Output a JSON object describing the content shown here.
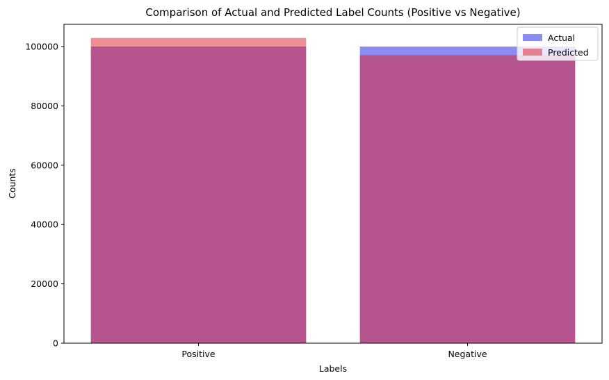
{
  "chart_data": {
    "type": "bar",
    "title": "Comparison of Actual and Predicted Label Counts (Positive vs Negative)",
    "xlabel": "Labels",
    "ylabel": "Counts",
    "categories": [
      "Positive",
      "Negative"
    ],
    "series": [
      {
        "name": "Actual",
        "values": [
          100000,
          100000
        ],
        "color": "#0000e6",
        "opacity": 0.45
      },
      {
        "name": "Predicted",
        "values": [
          102900,
          97100
        ],
        "color": "#e01c2a",
        "opacity": 0.5
      }
    ],
    "ylim": [
      0,
      107500
    ],
    "yticks": [
      0,
      20000,
      40000,
      60000,
      80000,
      100000
    ],
    "ytick_labels": [
      "0",
      "20000",
      "40000",
      "60000",
      "80000",
      "100000"
    ],
    "grid": false,
    "legend_position": "top-right"
  }
}
